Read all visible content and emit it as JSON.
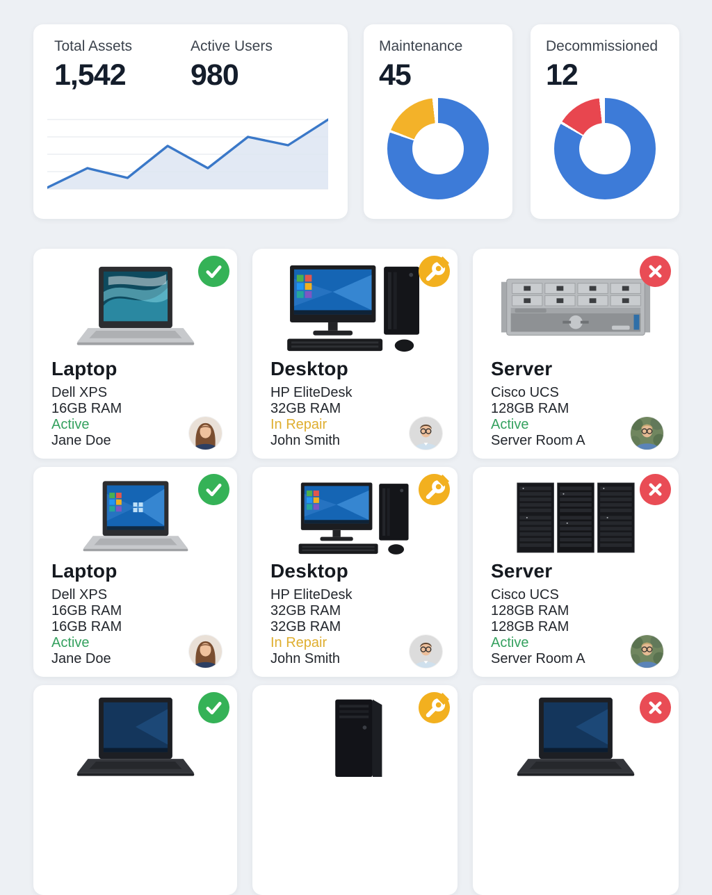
{
  "stats": [
    {
      "label": "Total Assets",
      "value": "1,542"
    },
    {
      "label": "Active Users",
      "value": "980"
    },
    {
      "label": "Maintenance",
      "value": "45"
    },
    {
      "label": "Decommissioned",
      "value": "12"
    }
  ],
  "chart_data": [
    {
      "type": "line",
      "title": "Assets trend sparkline (unlabeled axes)",
      "x": [
        1,
        2,
        3,
        4,
        5,
        6,
        7,
        8
      ],
      "values": [
        2,
        30,
        16,
        62,
        30,
        75,
        63,
        100
      ],
      "ylim": [
        0,
        100
      ],
      "grid": true,
      "legend": "none",
      "line_color": "#3a78c8",
      "fill_color": "#dde5f2"
    },
    {
      "type": "donut",
      "title": "Maintenance",
      "value_label": "45",
      "segments": [
        {
          "value": 81,
          "color": "#3d7bd8"
        },
        {
          "value": 18,
          "color": "#f3b229"
        }
      ],
      "hole": 0.52
    },
    {
      "type": "donut",
      "title": "Decommissioned",
      "value_label": "12",
      "segments": [
        {
          "value": 84,
          "color": "#3d7bd8"
        },
        {
          "value": 15,
          "color": "#e8464f"
        }
      ],
      "hole": 0.52
    }
  ],
  "colors": {
    "status_active": "#35a15f",
    "status_in_repair": "#dfae2f",
    "badge_check": "#35b257",
    "badge_wrench": "#f2b01f",
    "badge_x": "#e94c55"
  },
  "cards": [
    {
      "title": "Laptop",
      "model": "Dell XPS",
      "ram": "16GB RAM",
      "status": "Active",
      "status_color": "#35a15f",
      "owner": "Jane Doe",
      "badge": "check"
    },
    {
      "title": "Desktop",
      "model": "HP EliteDesk",
      "ram": "32GB RAM",
      "status": "In Repair",
      "status_color": "#dfae2f",
      "owner": "John Smith",
      "badge": "wrench"
    },
    {
      "title": "Server",
      "model": "Cisco UCS",
      "ram": "128GB RAM",
      "status": "Active",
      "status_color": "#35a15f",
      "owner": "Server Room A",
      "badge": "x"
    },
    {
      "title": "Laptop",
      "model": "Dell XPS",
      "ram": "16GB RAM",
      "ram2": "16GB RAM",
      "status": "Active",
      "status_color": "#35a15f",
      "owner": "Jane Doe",
      "badge": "check"
    },
    {
      "title": "Desktop",
      "model": "HP EliteDesk",
      "ram": "32GB RAM",
      "ram2": "32GB RAM",
      "status": "In Repair",
      "status_color": "#dfae2f",
      "owner": "John Smith",
      "badge": "wrench"
    },
    {
      "title": "Server",
      "model": "Cisco UCS",
      "ram": "128GB RAM",
      "ram2": "128GB RAM",
      "status": "Active",
      "status_color": "#35a15f",
      "owner": "Server Room A",
      "badge": "x"
    }
  ]
}
